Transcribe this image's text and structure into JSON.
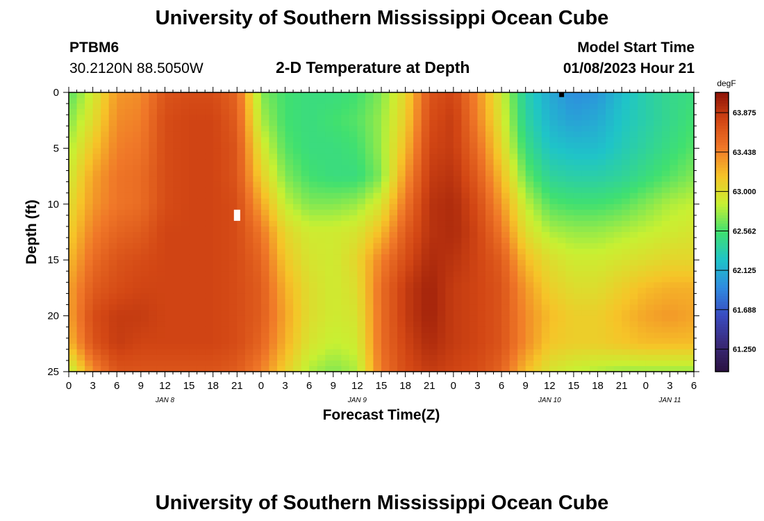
{
  "header": {
    "title": "University of Southern Mississippi Ocean Cube",
    "station_id": "PTBM6",
    "coordinates": "30.2120N  88.5050W",
    "subtitle": "2-D Temperature at Depth",
    "model_start_label": "Model Start Time",
    "model_start_value": "01/08/2023 Hour 21"
  },
  "footer": {
    "title": "University of Southern Mississippi Ocean Cube"
  },
  "chart_data": {
    "type": "heatmap",
    "title": "2-D Temperature at Depth",
    "xlabel": "Forecast Time(Z)",
    "ylabel": "Depth (ft)",
    "x_range_hours": [
      0,
      78
    ],
    "y_range_ft": [
      0,
      25
    ],
    "x_ticks": [
      "0",
      "3",
      "6",
      "9",
      "12",
      "15",
      "18",
      "21",
      "0",
      "3",
      "6",
      "9",
      "12",
      "15",
      "18",
      "21",
      "0",
      "3",
      "6",
      "9",
      "12",
      "15",
      "18",
      "21",
      "0",
      "3",
      "6"
    ],
    "y_ticks": [
      "0",
      "5",
      "10",
      "15",
      "20",
      "25"
    ],
    "day_labels": [
      {
        "text": "JAN 8",
        "hour": 12
      },
      {
        "text": "JAN 9",
        "hour": 36
      },
      {
        "text": "JAN 10",
        "hour": 60
      },
      {
        "text": "JAN 11",
        "hour": 75
      }
    ],
    "colorbar": {
      "unit": "degF",
      "min": 61.0,
      "max": 64.1,
      "tick_labels": [
        "63.875",
        "63.438",
        "63.000",
        "62.562",
        "62.125",
        "61.688",
        "61.250"
      ]
    },
    "color_stops": [
      "#2a1140",
      "#3a2a7a",
      "#3a4bc0",
      "#2f8ae0",
      "#1fc4c8",
      "#40e070",
      "#c8f032",
      "#f6c428",
      "#f07828",
      "#d24614",
      "#8c1206"
    ],
    "grid": {
      "depths_ft": [
        0,
        2.5,
        5,
        7.5,
        10,
        12.5,
        15,
        17.5,
        20,
        22.5,
        25
      ],
      "hours": [
        0,
        3,
        6,
        9,
        12,
        15,
        18,
        21,
        24,
        27,
        30,
        33,
        36,
        39,
        42,
        45,
        48,
        51,
        54,
        57,
        60,
        63,
        66,
        69,
        72,
        75,
        78
      ],
      "temperature_degF": [
        [
          62.6,
          62.9,
          63.35,
          63.4,
          63.7,
          63.75,
          63.75,
          63.6,
          62.7,
          62.55,
          62.5,
          62.5,
          62.55,
          62.7,
          63.05,
          63.7,
          63.8,
          63.4,
          62.9,
          62.35,
          62.1,
          61.95,
          62.0,
          62.2,
          62.35,
          62.45,
          62.5
        ],
        [
          62.7,
          63.0,
          63.4,
          63.45,
          63.75,
          63.8,
          63.8,
          63.65,
          62.8,
          62.55,
          62.5,
          62.55,
          62.6,
          62.75,
          63.1,
          63.75,
          63.85,
          63.45,
          62.95,
          62.4,
          62.15,
          62.05,
          62.1,
          62.25,
          62.35,
          62.45,
          62.55
        ],
        [
          62.8,
          63.15,
          63.45,
          63.5,
          63.75,
          63.8,
          63.8,
          63.7,
          62.95,
          62.6,
          62.5,
          62.5,
          62.55,
          62.75,
          63.2,
          63.8,
          63.85,
          63.55,
          63.05,
          62.5,
          62.25,
          62.2,
          62.2,
          62.3,
          62.4,
          62.5,
          62.6
        ],
        [
          62.9,
          63.3,
          63.5,
          63.55,
          63.75,
          63.8,
          63.8,
          63.7,
          63.1,
          62.7,
          62.55,
          62.5,
          62.5,
          62.7,
          63.35,
          63.85,
          63.9,
          63.65,
          63.2,
          62.65,
          62.4,
          62.35,
          62.35,
          62.4,
          62.5,
          62.6,
          62.7
        ],
        [
          63.0,
          63.35,
          63.5,
          63.55,
          63.75,
          63.8,
          63.8,
          63.75,
          63.3,
          62.85,
          62.7,
          62.7,
          62.75,
          62.95,
          63.5,
          63.9,
          63.95,
          63.75,
          63.35,
          62.85,
          62.6,
          62.55,
          62.55,
          62.6,
          62.7,
          62.8,
          62.85
        ],
        [
          63.1,
          63.45,
          63.6,
          63.65,
          63.8,
          63.8,
          63.8,
          63.75,
          63.5,
          63.05,
          62.9,
          62.9,
          62.95,
          63.2,
          63.65,
          63.9,
          63.95,
          63.8,
          63.5,
          63.0,
          62.8,
          62.75,
          62.75,
          62.8,
          62.85,
          62.9,
          62.95
        ],
        [
          63.2,
          63.55,
          63.7,
          63.75,
          63.8,
          63.8,
          63.8,
          63.75,
          63.6,
          63.15,
          62.95,
          62.9,
          63.05,
          63.45,
          63.75,
          63.95,
          63.9,
          63.8,
          63.65,
          63.2,
          63.0,
          62.9,
          62.9,
          62.95,
          63.0,
          63.05,
          63.05
        ],
        [
          63.3,
          63.65,
          63.75,
          63.8,
          63.8,
          63.8,
          63.8,
          63.75,
          63.65,
          63.25,
          63.0,
          62.9,
          63.0,
          63.55,
          63.85,
          64.0,
          63.85,
          63.8,
          63.7,
          63.35,
          63.1,
          63.0,
          63.0,
          63.1,
          63.2,
          63.25,
          63.25
        ],
        [
          63.3,
          63.75,
          63.85,
          63.85,
          63.8,
          63.8,
          63.8,
          63.75,
          63.65,
          63.3,
          63.0,
          62.9,
          62.95,
          63.55,
          63.85,
          64.0,
          63.85,
          63.8,
          63.7,
          63.4,
          63.2,
          63.1,
          63.1,
          63.2,
          63.3,
          63.35,
          63.3
        ],
        [
          63.2,
          63.7,
          63.85,
          63.8,
          63.8,
          63.8,
          63.8,
          63.75,
          63.6,
          63.25,
          62.95,
          62.85,
          62.9,
          63.55,
          63.8,
          63.95,
          63.85,
          63.8,
          63.7,
          63.4,
          63.15,
          63.1,
          63.1,
          63.15,
          63.2,
          63.2,
          63.2
        ],
        [
          62.8,
          63.4,
          63.7,
          63.7,
          63.7,
          63.7,
          63.7,
          63.65,
          63.45,
          63.1,
          62.8,
          62.7,
          62.8,
          63.5,
          63.75,
          63.85,
          63.8,
          63.75,
          63.6,
          63.2,
          62.95,
          62.85,
          62.8,
          62.75,
          62.75,
          62.75,
          62.75
        ]
      ]
    },
    "annotations": [
      {
        "type": "marker",
        "color": "#ffffff",
        "hour": 21,
        "depth_ft": 11
      },
      {
        "type": "marker",
        "color": "#000000",
        "hour": 61.5,
        "depth_ft": 0.2
      }
    ]
  }
}
